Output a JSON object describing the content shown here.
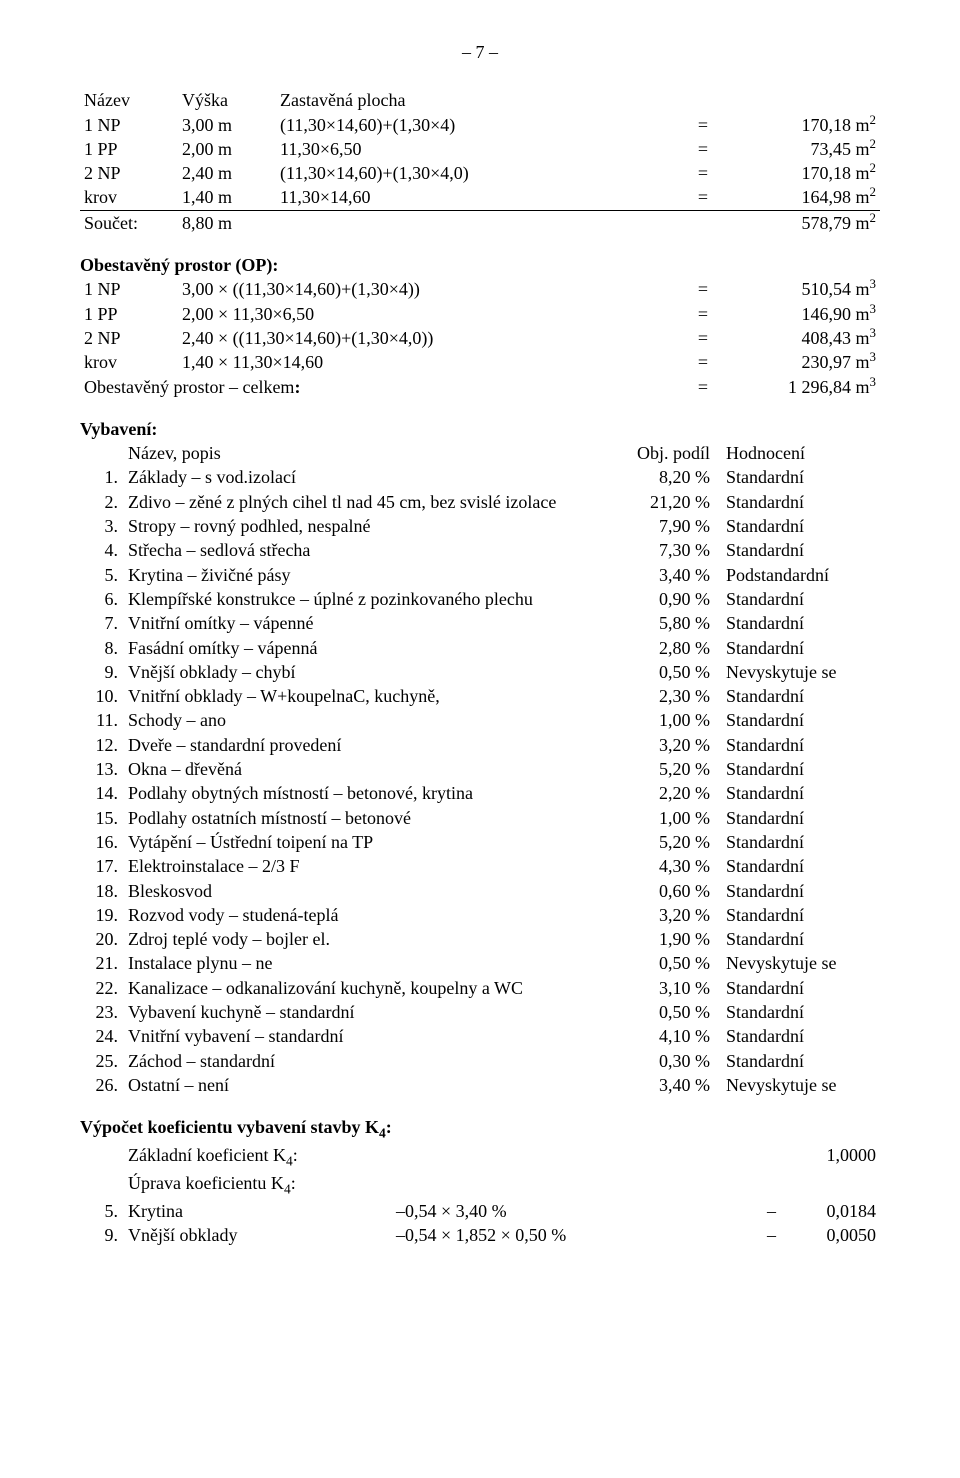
{
  "page_number": "– 7 –",
  "dims_header": {
    "c1": "Název",
    "c2": "Výška",
    "c3": "Zastavěná plocha"
  },
  "dims_rows": [
    {
      "name": "1 NP",
      "h": "3,00 m",
      "expr": "(11,30×14,60)+(1,30×4)",
      "val": "170,18 m",
      "unit_sup": "2",
      "underline": false
    },
    {
      "name": "1 PP",
      "h": "2,00 m",
      "expr": "11,30×6,50",
      "val": "73,45 m",
      "unit_sup": "2",
      "underline": false
    },
    {
      "name": "2 NP",
      "h": "2,40 m",
      "expr": "(11,30×14,60)+(1,30×4,0)",
      "val": "170,18 m",
      "unit_sup": "2",
      "underline": false
    },
    {
      "name": "krov",
      "h": "1,40 m",
      "expr": "11,30×14,60",
      "val": "164,98 m",
      "unit_sup": "2",
      "underline": true
    }
  ],
  "dims_sum": {
    "label": "Součet:",
    "h": "8,80 m",
    "val": "578,79 m",
    "unit_sup": "2"
  },
  "op_title": "Obestavěný prostor (OP):",
  "op_rows": [
    {
      "name": "1 NP",
      "expr": "3,00 × ((11,30×14,60)+(1,30×4))",
      "val": "510,54 m",
      "unit_sup": "3"
    },
    {
      "name": "1 PP",
      "expr": "2,00 × 11,30×6,50",
      "val": "146,90 m",
      "unit_sup": "3"
    },
    {
      "name": "2 NP",
      "expr": "2,40 × ((11,30×14,60)+(1,30×4,0))",
      "val": "408,43 m",
      "unit_sup": "3"
    },
    {
      "name": "krov",
      "expr": "1,40 × 11,30×14,60",
      "val": "230,97 m",
      "unit_sup": "3"
    }
  ],
  "op_total": {
    "label": "Obestavěný prostor – celkem",
    "suffix": ":",
    "val": "1 296,84 m",
    "unit_sup": "3"
  },
  "vyb_title": "Vybavení:",
  "vyb_header": {
    "c1": "Název, popis",
    "c2": "Obj. podíl",
    "c3": "Hodnocení"
  },
  "vyb_rows": [
    {
      "n": "1.",
      "desc": "Základy – s vod.izolací",
      "pct": "8,20 %",
      "hod": "Standardní"
    },
    {
      "n": "2.",
      "desc": "Zdivo – zěné z plných cihel tl  nad 45 cm, bez svislé izolace",
      "pct": "21,20 %",
      "hod": "Standardní"
    },
    {
      "n": "3.",
      "desc": "Stropy – rovný podhled, nespalné",
      "pct": "7,90 %",
      "hod": "Standardní"
    },
    {
      "n": "4.",
      "desc": "Střecha – sedlová střecha",
      "pct": "7,30 %",
      "hod": "Standardní"
    },
    {
      "n": "5.",
      "desc": "Krytina – živičné pásy",
      "pct": "3,40 %",
      "hod": "Podstandardní"
    },
    {
      "n": "6.",
      "desc": "Klempířské konstrukce – úplné z pozinkovaného  plechu",
      "pct": "0,90 %",
      "hod": "Standardní"
    },
    {
      "n": "7.",
      "desc": "Vnitřní omítky – vápenné",
      "pct": "5,80 %",
      "hod": "Standardní"
    },
    {
      "n": "8.",
      "desc": "Fasádní omítky – vápenná",
      "pct": "2,80 %",
      "hod": "Standardní"
    },
    {
      "n": "9.",
      "desc": "Vnější obklady – chybí",
      "pct": "0,50 %",
      "hod": "Nevyskytuje se"
    },
    {
      "n": "10.",
      "desc": "Vnitřní obklady – W+koupelnaC, kuchyně,",
      "pct": "2,30 %",
      "hod": "Standardní"
    },
    {
      "n": "11.",
      "desc": "Schody – ano",
      "pct": "1,00 %",
      "hod": "Standardní"
    },
    {
      "n": "12.",
      "desc": "Dveře – standardní provedení",
      "pct": "3,20 %",
      "hod": "Standardní"
    },
    {
      "n": "13.",
      "desc": "Okna – dřevěná",
      "pct": "5,20 %",
      "hod": "Standardní"
    },
    {
      "n": "14.",
      "desc": "Podlahy obytných místností – betonové, krytina",
      "pct": "2,20 %",
      "hod": "Standardní"
    },
    {
      "n": "15.",
      "desc": "Podlahy ostatních místností – betonové",
      "pct": "1,00 %",
      "hod": "Standardní"
    },
    {
      "n": "16.",
      "desc": "Vytápění – Ústřední toipení  na TP",
      "pct": "5,20 %",
      "hod": "Standardní"
    },
    {
      "n": "17.",
      "desc": "Elektroinstalace – 2/3 F",
      "pct": "4,30 %",
      "hod": "Standardní"
    },
    {
      "n": "18.",
      "desc": "Bleskosvod",
      "pct": "0,60 %",
      "hod": "Standardní"
    },
    {
      "n": "19.",
      "desc": "Rozvod vody – studená-teplá",
      "pct": "3,20 %",
      "hod": "Standardní"
    },
    {
      "n": "20.",
      "desc": "Zdroj teplé vody – bojler el.",
      "pct": "1,90 %",
      "hod": "Standardní"
    },
    {
      "n": "21.",
      "desc": "Instalace plynu – ne",
      "pct": "0,50 %",
      "hod": "Nevyskytuje se"
    },
    {
      "n": "22.",
      "desc": "Kanalizace – odkanalizování kuchyně, koupelny a WC",
      "pct": "3,10 %",
      "hod": "Standardní"
    },
    {
      "n": "23.",
      "desc": "Vybavení kuchyně – standardní",
      "pct": "0,50 %",
      "hod": "Standardní"
    },
    {
      "n": "24.",
      "desc": "Vnitřní vybavení – standardní",
      "pct": "4,10 %",
      "hod": "Standardní"
    },
    {
      "n": "25.",
      "desc": "Záchod – standardní",
      "pct": "0,30 %",
      "hod": "Standardní"
    },
    {
      "n": "26.",
      "desc": "Ostatní – není",
      "pct": "3,40 %",
      "hod": "Nevyskytuje se"
    }
  ],
  "k4_title": "Výpočet koeficientu vybavení stavby K",
  "k4_sub": "4",
  "k4_title_suffix": ":",
  "k4_base_label": "Základní koeficient K",
  "k4_base_sub": "4",
  "k4_base_suffix": ":",
  "k4_base_val": "1,0000",
  "k4_adj_label": "Úprava koeficientu K",
  "k4_adj_sub": "4",
  "k4_adj_suffix": ":",
  "k4_rows": [
    {
      "n": "5.",
      "desc": "Krytina",
      "formula": "–0,54 × 3,40 %",
      "dash": "–",
      "val": "0,0184"
    },
    {
      "n": "9.",
      "desc": "Vnější obklady",
      "formula": "–0,54 × 1,852 × 0,50 %",
      "dash": "–",
      "val": "0,0050"
    }
  ]
}
